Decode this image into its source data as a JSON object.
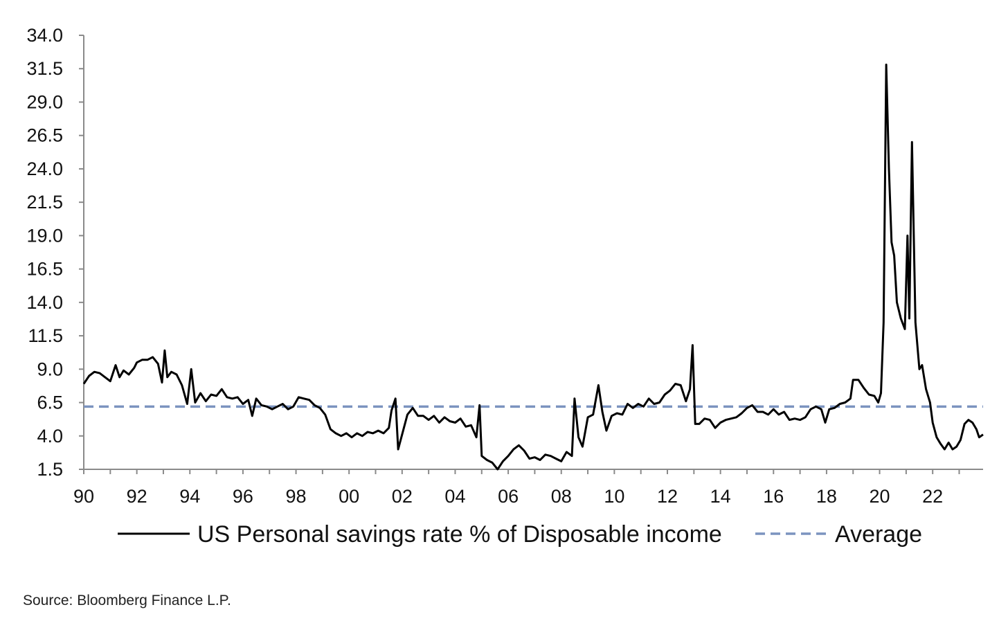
{
  "chart_data": {
    "type": "line",
    "title": "",
    "xlabel": "",
    "ylabel": "",
    "x_tick_labels": [
      "90",
      "92",
      "94",
      "96",
      "98",
      "00",
      "02",
      "04",
      "06",
      "08",
      "10",
      "12",
      "14",
      "16",
      "18",
      "20",
      "22"
    ],
    "x_tick_values": [
      1990,
      1992,
      1994,
      1996,
      1998,
      2000,
      2002,
      2004,
      2006,
      2008,
      2010,
      2012,
      2014,
      2016,
      2018,
      2020,
      2022
    ],
    "y_tick_labels": [
      "1.5",
      "4.0",
      "6.5",
      "9.0",
      "11.5",
      "14.0",
      "16.5",
      "19.0",
      "21.5",
      "24.0",
      "26.5",
      "29.0",
      "31.5",
      "34.0"
    ],
    "ylim": [
      1.5,
      34.0
    ],
    "xlim": [
      1990,
      2023.9
    ],
    "grid": false,
    "legend_position": "bottom",
    "series": [
      {
        "name": "US Personal savings rate % of Disposable income",
        "color": "#000000",
        "style": "solid",
        "points": [
          [
            1990.0,
            7.9
          ],
          [
            1990.2,
            8.5
          ],
          [
            1990.4,
            8.8
          ],
          [
            1990.6,
            8.7
          ],
          [
            1990.8,
            8.4
          ],
          [
            1991.0,
            8.1
          ],
          [
            1991.2,
            9.3
          ],
          [
            1991.35,
            8.4
          ],
          [
            1991.5,
            8.9
          ],
          [
            1991.7,
            8.6
          ],
          [
            1991.9,
            9.1
          ],
          [
            1992.0,
            9.5
          ],
          [
            1992.2,
            9.7
          ],
          [
            1992.4,
            9.7
          ],
          [
            1992.6,
            9.9
          ],
          [
            1992.8,
            9.4
          ],
          [
            1992.95,
            8.0
          ],
          [
            1993.05,
            10.4
          ],
          [
            1993.15,
            8.4
          ],
          [
            1993.3,
            8.8
          ],
          [
            1993.5,
            8.6
          ],
          [
            1993.7,
            7.8
          ],
          [
            1993.9,
            6.4
          ],
          [
            1994.05,
            9.0
          ],
          [
            1994.2,
            6.5
          ],
          [
            1994.4,
            7.2
          ],
          [
            1994.6,
            6.6
          ],
          [
            1994.8,
            7.1
          ],
          [
            1995.0,
            7.0
          ],
          [
            1995.2,
            7.5
          ],
          [
            1995.4,
            6.9
          ],
          [
            1995.6,
            6.8
          ],
          [
            1995.8,
            6.9
          ],
          [
            1996.0,
            6.4
          ],
          [
            1996.2,
            6.7
          ],
          [
            1996.35,
            5.5
          ],
          [
            1996.5,
            6.8
          ],
          [
            1996.7,
            6.3
          ],
          [
            1996.9,
            6.2
          ],
          [
            1997.1,
            6.0
          ],
          [
            1997.3,
            6.2
          ],
          [
            1997.5,
            6.4
          ],
          [
            1997.7,
            6.0
          ],
          [
            1997.9,
            6.2
          ],
          [
            1998.1,
            6.9
          ],
          [
            1998.3,
            6.8
          ],
          [
            1998.5,
            6.7
          ],
          [
            1998.7,
            6.3
          ],
          [
            1998.9,
            6.1
          ],
          [
            1999.1,
            5.6
          ],
          [
            1999.3,
            4.5
          ],
          [
            1999.5,
            4.2
          ],
          [
            1999.7,
            4.0
          ],
          [
            1999.9,
            4.2
          ],
          [
            2000.1,
            3.9
          ],
          [
            2000.3,
            4.2
          ],
          [
            2000.5,
            4.0
          ],
          [
            2000.7,
            4.3
          ],
          [
            2000.9,
            4.2
          ],
          [
            2001.1,
            4.4
          ],
          [
            2001.3,
            4.2
          ],
          [
            2001.5,
            4.6
          ],
          [
            2001.6,
            5.9
          ],
          [
            2001.75,
            6.8
          ],
          [
            2001.85,
            3.0
          ],
          [
            2002.0,
            4.1
          ],
          [
            2002.2,
            5.6
          ],
          [
            2002.4,
            6.1
          ],
          [
            2002.6,
            5.5
          ],
          [
            2002.8,
            5.5
          ],
          [
            2003.0,
            5.2
          ],
          [
            2003.2,
            5.5
          ],
          [
            2003.4,
            5.0
          ],
          [
            2003.6,
            5.4
          ],
          [
            2003.8,
            5.1
          ],
          [
            2004.0,
            5.0
          ],
          [
            2004.2,
            5.3
          ],
          [
            2004.4,
            4.7
          ],
          [
            2004.6,
            4.8
          ],
          [
            2004.8,
            3.9
          ],
          [
            2004.92,
            6.3
          ],
          [
            2005.0,
            2.5
          ],
          [
            2005.2,
            2.2
          ],
          [
            2005.4,
            2.0
          ],
          [
            2005.6,
            1.5
          ],
          [
            2005.8,
            2.1
          ],
          [
            2006.0,
            2.5
          ],
          [
            2006.2,
            3.0
          ],
          [
            2006.4,
            3.3
          ],
          [
            2006.6,
            2.9
          ],
          [
            2006.8,
            2.3
          ],
          [
            2007.0,
            2.4
          ],
          [
            2007.2,
            2.2
          ],
          [
            2007.4,
            2.6
          ],
          [
            2007.6,
            2.5
          ],
          [
            2007.8,
            2.3
          ],
          [
            2008.0,
            2.1
          ],
          [
            2008.2,
            2.8
          ],
          [
            2008.4,
            2.5
          ],
          [
            2008.5,
            6.8
          ],
          [
            2008.65,
            3.9
          ],
          [
            2008.8,
            3.2
          ],
          [
            2009.0,
            5.4
          ],
          [
            2009.2,
            5.6
          ],
          [
            2009.4,
            7.8
          ],
          [
            2009.55,
            5.8
          ],
          [
            2009.7,
            4.4
          ],
          [
            2009.9,
            5.5
          ],
          [
            2010.1,
            5.7
          ],
          [
            2010.3,
            5.6
          ],
          [
            2010.5,
            6.4
          ],
          [
            2010.7,
            6.1
          ],
          [
            2010.9,
            6.4
          ],
          [
            2011.1,
            6.2
          ],
          [
            2011.3,
            6.8
          ],
          [
            2011.5,
            6.4
          ],
          [
            2011.7,
            6.5
          ],
          [
            2011.9,
            7.1
          ],
          [
            2012.1,
            7.4
          ],
          [
            2012.3,
            7.9
          ],
          [
            2012.5,
            7.8
          ],
          [
            2012.7,
            6.6
          ],
          [
            2012.85,
            7.5
          ],
          [
            2012.95,
            10.8
          ],
          [
            2013.05,
            4.9
          ],
          [
            2013.2,
            4.9
          ],
          [
            2013.4,
            5.3
          ],
          [
            2013.6,
            5.2
          ],
          [
            2013.8,
            4.6
          ],
          [
            2014.0,
            5.0
          ],
          [
            2014.2,
            5.2
          ],
          [
            2014.4,
            5.3
          ],
          [
            2014.6,
            5.4
          ],
          [
            2014.8,
            5.7
          ],
          [
            2015.0,
            6.1
          ],
          [
            2015.2,
            6.3
          ],
          [
            2015.4,
            5.8
          ],
          [
            2015.6,
            5.8
          ],
          [
            2015.8,
            5.6
          ],
          [
            2016.0,
            6.0
          ],
          [
            2016.2,
            5.6
          ],
          [
            2016.4,
            5.8
          ],
          [
            2016.6,
            5.2
          ],
          [
            2016.8,
            5.3
          ],
          [
            2017.0,
            5.2
          ],
          [
            2017.2,
            5.4
          ],
          [
            2017.4,
            6.0
          ],
          [
            2017.6,
            6.2
          ],
          [
            2017.8,
            6.0
          ],
          [
            2017.95,
            5.0
          ],
          [
            2018.1,
            6.0
          ],
          [
            2018.3,
            6.1
          ],
          [
            2018.5,
            6.4
          ],
          [
            2018.7,
            6.5
          ],
          [
            2018.9,
            6.8
          ],
          [
            2019.0,
            8.2
          ],
          [
            2019.2,
            8.2
          ],
          [
            2019.4,
            7.6
          ],
          [
            2019.6,
            7.1
          ],
          [
            2019.8,
            7.0
          ],
          [
            2019.95,
            6.5
          ],
          [
            2020.05,
            7.2
          ],
          [
            2020.15,
            12.5
          ],
          [
            2020.25,
            31.8
          ],
          [
            2020.35,
            24.0
          ],
          [
            2020.45,
            18.5
          ],
          [
            2020.55,
            17.5
          ],
          [
            2020.65,
            14.0
          ],
          [
            2020.8,
            12.8
          ],
          [
            2020.95,
            12.0
          ],
          [
            2021.05,
            19.0
          ],
          [
            2021.12,
            12.8
          ],
          [
            2021.22,
            26.0
          ],
          [
            2021.35,
            12.5
          ],
          [
            2021.5,
            9.0
          ],
          [
            2021.6,
            9.3
          ],
          [
            2021.75,
            7.5
          ],
          [
            2021.9,
            6.5
          ],
          [
            2022.0,
            5.0
          ],
          [
            2022.15,
            3.9
          ],
          [
            2022.3,
            3.4
          ],
          [
            2022.45,
            3.0
          ],
          [
            2022.6,
            3.5
          ],
          [
            2022.75,
            3.0
          ],
          [
            2022.9,
            3.2
          ],
          [
            2023.05,
            3.7
          ],
          [
            2023.2,
            4.9
          ],
          [
            2023.35,
            5.2
          ],
          [
            2023.5,
            5.0
          ],
          [
            2023.65,
            4.5
          ],
          [
            2023.75,
            3.9
          ],
          [
            2023.9,
            4.1
          ]
        ]
      },
      {
        "name": "Average",
        "color": "#7B93BF",
        "style": "dashed",
        "value": 6.2
      }
    ]
  },
  "legend": {
    "series_label": "US Personal savings rate % of Disposable income",
    "average_label": "Average"
  },
  "source": "Source: Bloomberg Finance L.P."
}
